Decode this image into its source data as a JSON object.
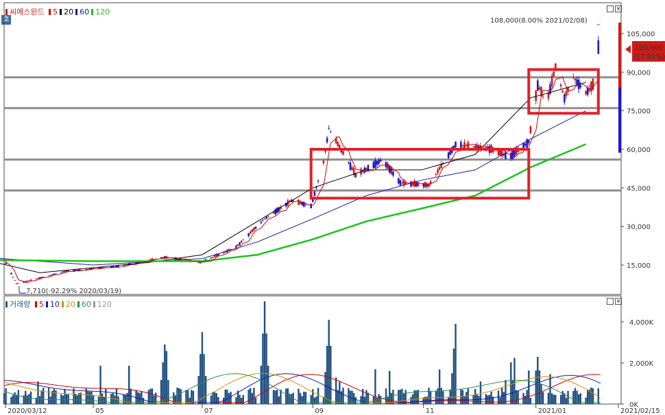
{
  "price_legend": {
    "name": "씨에스윈드",
    "ma": [
      {
        "label": "5",
        "color": "#cc0000"
      },
      {
        "label": "20",
        "color": "#000000"
      },
      {
        "label": "60",
        "color": "#1a1aa8"
      },
      {
        "label": "120",
        "color": "#19c419"
      }
    ]
  },
  "volume_legend": {
    "name": "거래량",
    "ma": [
      {
        "label": "5",
        "color": "#cc0000"
      },
      {
        "label": "10",
        "color": "#1a1aa8"
      },
      {
        "label": "20",
        "color": "#d98f00"
      },
      {
        "label": "60",
        "color": "#2e8b57"
      },
      {
        "label": "120",
        "color": "#999999"
      }
    ]
  },
  "side_button": "호",
  "annotations": {
    "high": "108,000(8.00% 2021/02/08)",
    "low": "7,710(-92.29% 2020/03/19)",
    "current_price": "100,000",
    "current_change": "(17.92%)"
  },
  "colors": {
    "up": "#d11919",
    "down": "#1a1ac8",
    "box": "#e0202a",
    "hline": "#8c8c8c"
  },
  "chart_data": [
    {
      "type": "candlestick",
      "title": "씨에스윈드",
      "y_ticks": [
        15000,
        30000,
        45000,
        60000,
        75000,
        90000,
        105000
      ],
      "y_tick_labels": [
        "15,000",
        "30,000",
        "45,000",
        "60,000",
        "75,000",
        "90,000",
        "105,000"
      ],
      "ylim": [
        0,
        115000
      ],
      "grid": false,
      "horizontal_lines": [
        88000,
        76000,
        56000,
        44000
      ],
      "highlight_boxes": [
        {
          "x_from": "2020/08/31",
          "x_to": "2020/12/31",
          "y_from": 41000,
          "y_to": 60000
        },
        {
          "x_from": "2020/12/31",
          "x_to": "2021/02/08",
          "y_from": 74000,
          "y_to": 91000
        }
      ],
      "x_labels": [
        "2020/03/12",
        "05",
        "07",
        "09",
        "11",
        "2021/01",
        "2021/02/15"
      ],
      "series": [
        {
          "name": "5",
          "values_approx": "follows close"
        },
        {
          "name": "20",
          "points": [
            [
              "2020/03",
              17000
            ],
            [
              "2020/04",
              12000
            ],
            [
              "2020/06",
              16000
            ],
            [
              "2020/07",
              19000
            ],
            [
              "2020/08",
              32000
            ],
            [
              "2020/09",
              45000
            ],
            [
              "2020/10",
              52000
            ],
            [
              "2020/11",
              52000
            ],
            [
              "2020/12",
              58000
            ],
            [
              "2021/01",
              80000
            ],
            [
              "2021/02",
              86000
            ]
          ]
        },
        {
          "name": "60",
          "points": [
            [
              "2020/03",
              18000
            ],
            [
              "2020/05",
              15000
            ],
            [
              "2020/07",
              17500
            ],
            [
              "2020/08",
              24000
            ],
            [
              "2020/09",
              33000
            ],
            [
              "2020/10",
              42000
            ],
            [
              "2020/11",
              48000
            ],
            [
              "2020/12",
              52000
            ],
            [
              "2021/01",
              64000
            ],
            [
              "2021/02",
              75000
            ]
          ]
        },
        {
          "name": "120",
          "points": [
            [
              "2020/03",
              17000
            ],
            [
              "2020/05",
              16500
            ],
            [
              "2020/07",
              16500
            ],
            [
              "2020/08",
              19000
            ],
            [
              "2020/09",
              25000
            ],
            [
              "2020/10",
              32000
            ],
            [
              "2020/11",
              37000
            ],
            [
              "2020/12",
              42000
            ],
            [
              "2021/01",
              53000
            ],
            [
              "2021/02",
              62000
            ]
          ]
        }
      ],
      "ohlc_keypoints": [
        [
          "2020/03/12",
          17000
        ],
        [
          "2020/03/19",
          7710
        ],
        [
          "2020/04/15",
          12500
        ],
        [
          "2020/05/15",
          14500
        ],
        [
          "2020/06/10",
          18000
        ],
        [
          "2020/06/30",
          16000
        ],
        [
          "2020/07/20",
          22000
        ],
        [
          "2020/08/05",
          33000
        ],
        [
          "2020/08/20",
          40000
        ],
        [
          "2020/08/31",
          38000
        ],
        [
          "2020/09/07",
          55000
        ],
        [
          "2020/09/10",
          68000
        ],
        [
          "2020/09/25",
          50000
        ],
        [
          "2020/10/10",
          56000
        ],
        [
          "2020/10/20",
          47000
        ],
        [
          "2020/11/05",
          46000
        ],
        [
          "2020/11/20",
          62000
        ],
        [
          "2020/12/10",
          60000
        ],
        [
          "2020/12/20",
          57000
        ],
        [
          "2020/12/31",
          63000
        ],
        [
          "2021/01/05",
          85000
        ],
        [
          "2021/01/10",
          78000
        ],
        [
          "2021/01/15",
          92000
        ],
        [
          "2021/01/20",
          80000
        ],
        [
          "2021/01/25",
          88000
        ],
        [
          "2021/02/01",
          82000
        ],
        [
          "2021/02/05",
          85000
        ],
        [
          "2021/02/08",
          100000
        ]
      ]
    },
    {
      "type": "bar",
      "title": "거래량",
      "y_ticks": [
        0,
        2000000,
        4000000
      ],
      "y_tick_labels": [
        "0K",
        "2,000K",
        "4,000K"
      ],
      "ylim": [
        0,
        5000000
      ],
      "values_desc": "daily volume bars with spikes around 2020/06, 2020/07-08, 2020/09, 2020/11, 2020/12, 2021/01"
    }
  ]
}
